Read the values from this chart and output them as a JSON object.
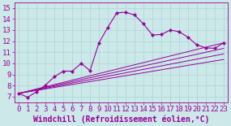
{
  "xlabel": "Windchill (Refroidissement éolien,°C)",
  "bg_color": "#cce8e8",
  "line_color": "#990099",
  "grid_color": "#aacccc",
  "xlim": [
    -0.5,
    23.5
  ],
  "ylim": [
    6.5,
    15.5
  ],
  "xticks": [
    0,
    1,
    2,
    3,
    4,
    5,
    6,
    7,
    8,
    9,
    10,
    11,
    12,
    13,
    14,
    15,
    16,
    17,
    18,
    19,
    20,
    21,
    22,
    23
  ],
  "yticks": [
    7,
    8,
    9,
    10,
    11,
    12,
    13,
    14,
    15
  ],
  "main_line": {
    "x": [
      0,
      1,
      2,
      3,
      4,
      5,
      6,
      7,
      8,
      9,
      10,
      11,
      12,
      13,
      14,
      15,
      16,
      17,
      18,
      19,
      20,
      21,
      22,
      23
    ],
    "y": [
      7.3,
      6.95,
      7.45,
      8.05,
      8.8,
      9.3,
      9.3,
      10.0,
      9.35,
      11.85,
      13.25,
      14.55,
      14.6,
      14.35,
      13.55,
      12.55,
      12.6,
      13.0,
      12.85,
      12.35,
      11.65,
      11.4,
      11.35,
      11.85
    ]
  },
  "straight_lines": [
    {
      "x": [
        0,
        23
      ],
      "y": [
        7.3,
        11.85
      ]
    },
    {
      "x": [
        0,
        23
      ],
      "y": [
        7.3,
        11.35
      ]
    },
    {
      "x": [
        0,
        23
      ],
      "y": [
        7.3,
        10.85
      ]
    },
    {
      "x": [
        0,
        23
      ],
      "y": [
        7.3,
        10.35
      ]
    }
  ],
  "font_size_xlabel": 7,
  "tick_fontsize": 6.5
}
